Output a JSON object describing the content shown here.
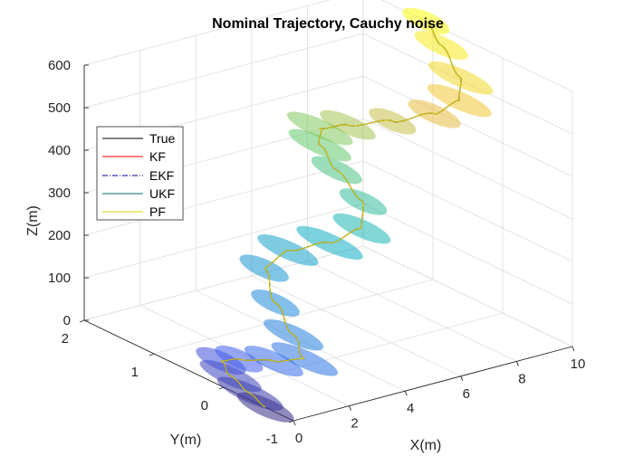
{
  "chart_data": {
    "type": "line3d",
    "title": "Nominal Trajectory, Cauchy noise",
    "xlabel": "X(m)",
    "ylabel": "Y(m)",
    "zlabel": "Z(m)",
    "xlim": [
      0,
      10
    ],
    "ylim": [
      -1,
      2
    ],
    "zlim": [
      0,
      600
    ],
    "xticks": [
      "0",
      "2",
      "4",
      "6",
      "8",
      "10"
    ],
    "yticks": [
      "-1",
      "0",
      "1",
      "2"
    ],
    "zticks": [
      "0",
      "100",
      "200",
      "300",
      "400",
      "500",
      "600"
    ],
    "grid": true,
    "legend_position": "top-left",
    "series": [
      {
        "name": "True",
        "color": "#000000",
        "style": "solid"
      },
      {
        "name": "KF",
        "color": "#ff0000",
        "style": "solid"
      },
      {
        "name": "EKF",
        "color": "#00008b",
        "style": "dash-dot"
      },
      {
        "name": "UKF",
        "color": "#006c6c",
        "style": "solid"
      },
      {
        "name": "PF",
        "color": "#e6d200",
        "style": "solid"
      }
    ],
    "trajectory": {
      "x": [
        0.0,
        0.2,
        0.5,
        0.9,
        1.3,
        1.8,
        2.4,
        3.0,
        3.6,
        4.2,
        4.8,
        5.3,
        5.7,
        6.0,
        6.3,
        6.7,
        7.2,
        7.7,
        8.3,
        8.8,
        9.2,
        9.5,
        9.8,
        10.0
      ],
      "y": [
        -0.6,
        -0.3,
        0.1,
        0.4,
        0.3,
        0.0,
        -0.2,
        0.2,
        0.7,
        1.1,
        1.0,
        0.6,
        0.3,
        0.4,
        0.9,
        1.3,
        1.5,
        1.3,
        0.9,
        0.5,
        0.3,
        0.4,
        0.8,
        1.1
      ],
      "z": [
        0,
        5,
        10,
        15,
        20,
        30,
        40,
        55,
        80,
        120,
        160,
        200,
        250,
        300,
        330,
        350,
        365,
        380,
        410,
        450,
        490,
        530,
        570,
        600
      ]
    },
    "covariance_ellipses": {
      "colormap": "parula",
      "count": 24
    }
  }
}
